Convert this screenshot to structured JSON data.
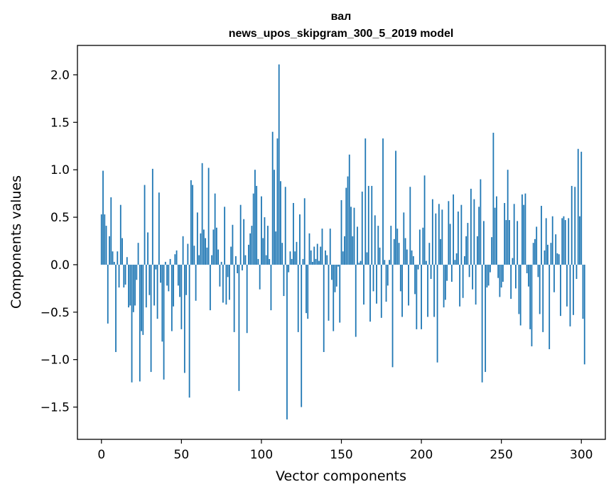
{
  "chart_data": {
    "type": "bar",
    "title_line1": "вал",
    "title_line2": "news_upos_skipgram_300_5_2019 model",
    "xlabel": "Vector components",
    "ylabel": "Components values",
    "xlim": [
      -15,
      315
    ],
    "ylim": [
      -1.84,
      2.31
    ],
    "x_ticks": [
      0,
      50,
      100,
      150,
      200,
      250,
      300
    ],
    "x_tick_labels": [
      "0",
      "50",
      "100",
      "150",
      "200",
      "250",
      "300"
    ],
    "y_ticks": [
      -1.5,
      -1.0,
      -0.5,
      0.0,
      0.5,
      1.0,
      1.5,
      2.0
    ],
    "y_tick_labels": [
      "−1.5",
      "−1.0",
      "−0.5",
      "0.0",
      "0.5",
      "1.0",
      "1.5",
      "2.0"
    ],
    "bar_color": "#1f77b4",
    "values": [
      0.53,
      0.99,
      0.53,
      0.41,
      -0.62,
      0.3,
      0.71,
      0.14,
      0.03,
      -0.92,
      0.14,
      -0.24,
      0.63,
      0.28,
      -0.24,
      -0.21,
      0.08,
      -0.45,
      -0.43,
      -1.24,
      -0.5,
      -0.43,
      -0.16,
      0.23,
      -1.23,
      -0.7,
      -0.74,
      0.84,
      -0.45,
      0.34,
      -0.32,
      -1.13,
      1.01,
      -0.43,
      -0.05,
      -0.57,
      0.76,
      -0.19,
      -0.81,
      -1.21,
      0.03,
      -0.22,
      -0.28,
      0.06,
      -0.7,
      -0.44,
      0.11,
      0.15,
      -0.22,
      -0.34,
      -0.68,
      0.3,
      -1.14,
      -0.32,
      0.22,
      -1.4,
      0.89,
      0.84,
      0.2,
      -0.38,
      0.55,
      0.1,
      0.33,
      1.07,
      0.37,
      0.28,
      0.18,
      1.02,
      -0.48,
      0.1,
      0.37,
      0.75,
      0.39,
      0.16,
      -0.23,
      0.03,
      -0.4,
      0.61,
      -0.42,
      -0.13,
      -0.37,
      0.19,
      0.42,
      -0.71,
      0.09,
      -0.09,
      -1.33,
      0.63,
      -0.06,
      0.48,
      0.1,
      -0.72,
      0.21,
      0.33,
      0.41,
      0.75,
      1.0,
      0.83,
      0.06,
      -0.26,
      0.72,
      0.28,
      0.5,
      0.1,
      0.41,
      0.06,
      -0.48,
      1.4,
      1.0,
      0.35,
      1.33,
      2.11,
      0.88,
      0.23,
      -0.33,
      0.82,
      -1.63,
      -0.08,
      0.14,
      0.06,
      0.65,
      0.14,
      0.24,
      -0.71,
      0.53,
      -1.5,
      0.06,
      0.7,
      -0.51,
      -0.57,
      0.33,
      0.15,
      0.03,
      0.19,
      0.06,
      0.22,
      0.04,
      0.19,
      0.38,
      -0.92,
      0.15,
      0.1,
      -0.59,
      0.38,
      -0.16,
      -0.7,
      -0.29,
      -0.23,
      -0.02,
      -0.61,
      0.68,
      0.14,
      0.3,
      0.81,
      0.93,
      1.16,
      0.61,
      0.3,
      0.6,
      -0.76,
      0.4,
      0.02,
      0.04,
      0.77,
      -0.42,
      1.33,
      0.13,
      0.83,
      -0.6,
      0.83,
      -0.28,
      0.52,
      -0.41,
      0.41,
      0.18,
      -0.56,
      1.33,
      0.05,
      -0.39,
      -0.22,
      0.05,
      0.41,
      -1.08,
      0.27,
      1.2,
      0.38,
      0.23,
      -0.28,
      -0.55,
      0.55,
      0.28,
      0.16,
      -0.43,
      0.82,
      0.15,
      0.09,
      -0.31,
      -0.68,
      -0.05,
      0.37,
      -0.68,
      0.39,
      0.94,
      0.04,
      -0.55,
      0.23,
      -0.15,
      0.69,
      -0.55,
      0.54,
      -1.03,
      0.64,
      0.27,
      0.58,
      -0.45,
      -0.37,
      -0.17,
      0.67,
      0.43,
      -0.18,
      0.74,
      0.05,
      0.12,
      0.56,
      -0.44,
      0.63,
      -0.35,
      0.09,
      0.3,
      0.44,
      -0.13,
      0.8,
      -0.26,
      0.69,
      -0.42,
      0.3,
      0.61,
      0.9,
      -1.24,
      0.46,
      -1.13,
      -0.24,
      -0.22,
      -0.08,
      0.29,
      1.39,
      0.6,
      0.72,
      -0.14,
      -0.34,
      -0.24,
      -0.18,
      0.65,
      0.47,
      1.0,
      0.47,
      -0.36,
      0.07,
      0.64,
      -0.25,
      0.46,
      -0.52,
      -0.64,
      0.74,
      0.63,
      0.75,
      -0.09,
      -0.23,
      -0.68,
      -0.86,
      0.23,
      0.27,
      0.4,
      -0.13,
      -0.52,
      0.62,
      -0.71,
      0.15,
      0.49,
      0.21,
      -0.89,
      0.23,
      0.51,
      -0.29,
      0.32,
      0.12,
      0.11,
      -0.54,
      0.49,
      0.51,
      0.47,
      -0.44,
      0.49,
      -0.65,
      0.83,
      -0.53,
      0.82,
      -0.15,
      1.22,
      0.51,
      1.19,
      -0.57,
      -1.05
    ]
  }
}
